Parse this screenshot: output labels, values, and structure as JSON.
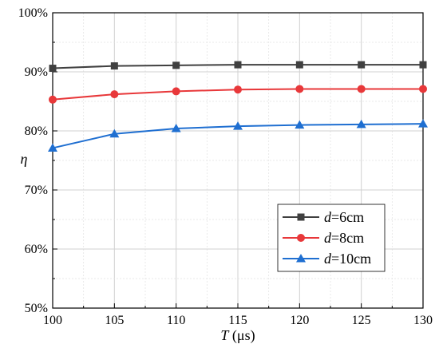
{
  "chart_data": {
    "type": "line",
    "x": [
      100,
      105,
      110,
      115,
      120,
      125,
      130
    ],
    "xlim": [
      100,
      130
    ],
    "ylim": [
      50,
      100
    ],
    "xticks": [
      "100",
      "105",
      "110",
      "115",
      "120",
      "125",
      "130"
    ],
    "yticks": [
      "50%",
      "60%",
      "70%",
      "80%",
      "90%",
      "100%"
    ],
    "xlabel_var": "T",
    "xlabel_unit": " (μs)",
    "ylabel": "η",
    "grid": true,
    "legend_position": "bottom-right",
    "series": [
      {
        "name_var": "d",
        "name_rest": "=6cm",
        "color": "#404040",
        "marker": "square",
        "values": [
          90.6,
          91.0,
          91.1,
          91.2,
          91.2,
          91.2,
          91.2
        ]
      },
      {
        "name_var": "d",
        "name_rest": "=8cm",
        "color": "#e8383a",
        "marker": "circle",
        "values": [
          85.3,
          86.2,
          86.7,
          87.0,
          87.1,
          87.1,
          87.1
        ]
      },
      {
        "name_var": "d",
        "name_rest": "=10cm",
        "color": "#1f6fd1",
        "marker": "triangle",
        "values": [
          77.1,
          79.5,
          80.4,
          80.8,
          81.0,
          81.1,
          81.2
        ]
      }
    ]
  }
}
